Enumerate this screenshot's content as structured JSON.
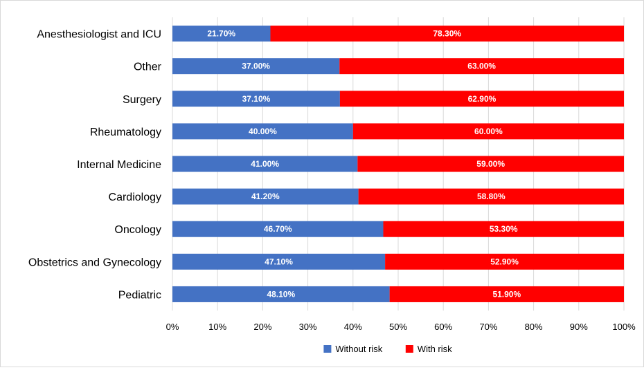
{
  "chart_data": {
    "type": "bar",
    "orientation": "horizontal",
    "stacked": true,
    "percent_stacked": true,
    "categories": [
      "Anesthesiologist and ICU",
      "Other",
      "Surgery",
      "Rheumatology",
      "Internal Medicine",
      "Cardiology",
      "Oncology",
      "Obstetrics and Gynecology",
      "Pediatric"
    ],
    "series": [
      {
        "name": "Without risk",
        "color": "#4472c4",
        "values": [
          21.7,
          37.0,
          37.1,
          40.0,
          41.0,
          41.2,
          46.7,
          47.1,
          48.1
        ],
        "labels": [
          "21.70%",
          "37.00%",
          "37.10%",
          "40.00%",
          "41.00%",
          "41.20%",
          "46.70%",
          "47.10%",
          "48.10%"
        ]
      },
      {
        "name": "With risk",
        "color": "#ff0000",
        "values": [
          78.3,
          63.0,
          62.9,
          60.0,
          59.0,
          58.8,
          53.3,
          52.9,
          51.9
        ],
        "labels": [
          "78.30%",
          "63.00%",
          "62.90%",
          "60.00%",
          "59.00%",
          "58.80%",
          "53.30%",
          "52.90%",
          "51.90%"
        ]
      }
    ],
    "x_ticks": [
      "0%",
      "10%",
      "20%",
      "30%",
      "40%",
      "50%",
      "60%",
      "70%",
      "80%",
      "90%",
      "100%"
    ],
    "xlim": [
      0,
      100
    ],
    "grid": true,
    "legend_position": "bottom",
    "gridline_color": "#d9d9d9"
  }
}
